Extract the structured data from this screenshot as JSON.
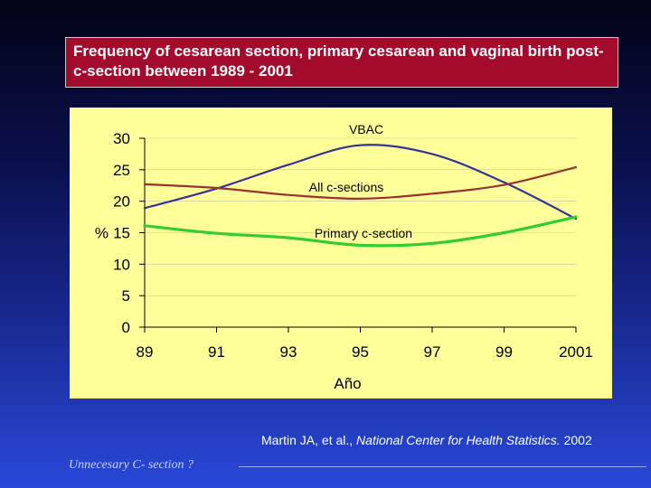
{
  "slide": {
    "title": "Frequency of cesarean section, primary cesarean and vaginal birth post-c-section between 1989 - 2001",
    "source_authors": "Martin JA, et al.,",
    "source_journal": "National Center for Health Statistics.",
    "source_year": "2002",
    "footer_note": "Unnecesary C- section ?",
    "colors": {
      "title_background": "#a30b2c",
      "plot_background": "#ffff99",
      "vbac": "#333399",
      "all_csections": "#993333",
      "primary": "#33cc33"
    }
  },
  "chart_data": {
    "type": "line",
    "title": "",
    "xlabel": "Año",
    "ylabel": "%",
    "categories": [
      "89",
      "91",
      "93",
      "95",
      "97",
      "99",
      "2001"
    ],
    "x": [
      89,
      91,
      93,
      95,
      97,
      99,
      101
    ],
    "ylim": [
      0,
      30
    ],
    "y_ticks": [
      "0",
      "5",
      "10",
      "15",
      "20",
      "25",
      "30"
    ],
    "grid": true,
    "series": [
      {
        "name": "VBAC",
        "color": "#333399",
        "values": [
          18.9,
          22.0,
          25.8,
          28.9,
          27.5,
          23.0,
          17.2
        ]
      },
      {
        "name": "All c-sections",
        "color": "#993333",
        "values": [
          22.7,
          22.1,
          21.0,
          20.4,
          21.2,
          22.6,
          25.4
        ]
      },
      {
        "name": "Primary c-section",
        "color": "#33cc33",
        "values": [
          16.1,
          14.9,
          14.2,
          13.0,
          13.3,
          15.0,
          17.5
        ]
      }
    ]
  }
}
